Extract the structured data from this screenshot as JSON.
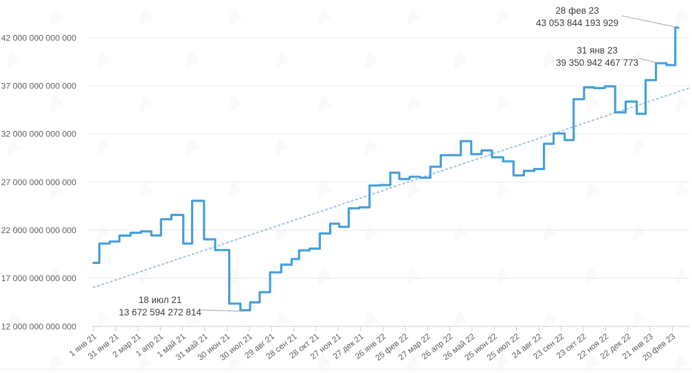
{
  "page": {
    "background": "#ffffff",
    "watermark": {
      "icon": "logo-watermark",
      "color": "#8f86ad",
      "opacity": 0.05
    }
  },
  "chart_data": {
    "type": "line",
    "subtype": "step",
    "title": "",
    "ylabel": "",
    "xlabel": "",
    "grid": "horizontal",
    "ylim_trillions": [
      12,
      42
    ],
    "y_tick_labels": [
      "12 000 000 000 000",
      "17 000 000 000 000",
      "22 000 000 000 000",
      "27 000 000 000 000",
      "32 000 000 000 000",
      "37 000 000 000 000",
      "42 000 000 000 000"
    ],
    "y_tick_values_trillions": [
      12,
      17,
      22,
      27,
      32,
      37,
      42
    ],
    "x_tick_labels": [
      "1 янв 21",
      "31 янв 21",
      "2 мар 21",
      "1 апр 21",
      "1 май 21",
      "31 май 21",
      "30 июн 21",
      "30 июл 21",
      "29 авг 21",
      "28 сен 21",
      "28 окт 21",
      "27 ноя 21",
      "27 дек 21",
      "26 янв 22",
      "25 фев 22",
      "27 мар 22",
      "26 апр 22",
      "26 май 22",
      "25 июн 22",
      "25 июл 22",
      "24 авг 22",
      "23 сен 22",
      "23 окт 22",
      "22 ноя 22",
      "22 дек 22",
      "21 янв 23",
      "20 фев 23"
    ],
    "x_tick_interval_days": 30,
    "series": [
      {
        "name": "mining-difficulty",
        "color": "#459fd8",
        "points_day_valueT": [
          [
            0,
            18.599
          ],
          [
            8,
            20.607
          ],
          [
            22,
            20.823
          ],
          [
            35,
            21.434
          ],
          [
            50,
            21.724
          ],
          [
            64,
            21.866
          ],
          [
            78,
            21.448
          ],
          [
            91,
            23.137
          ],
          [
            105,
            23.581
          ],
          [
            121,
            20.608
          ],
          [
            133,
            25.046
          ],
          [
            149,
            21.048
          ],
          [
            164,
            19.933
          ],
          [
            183,
            14.363
          ],
          [
            198,
            13.673
          ],
          [
            211,
            14.496
          ],
          [
            224,
            15.556
          ],
          [
            238,
            17.615
          ],
          [
            253,
            18.415
          ],
          [
            267,
            18.998
          ],
          [
            277,
            19.893
          ],
          [
            291,
            20.082
          ],
          [
            305,
            21.659
          ],
          [
            319,
            22.674
          ],
          [
            331,
            22.339
          ],
          [
            344,
            24.272
          ],
          [
            358,
            24.372
          ],
          [
            372,
            26.643
          ],
          [
            386,
            26.69
          ],
          [
            400,
            27.968
          ],
          [
            412,
            27.313
          ],
          [
            426,
            27.551
          ],
          [
            440,
            27.452
          ],
          [
            454,
            28.587
          ],
          [
            468,
            29.794
          ],
          [
            481,
            29.794
          ],
          [
            495,
            31.251
          ],
          [
            509,
            29.897
          ],
          [
            523,
            30.283
          ],
          [
            537,
            29.57
          ],
          [
            552,
            29.153
          ],
          [
            566,
            27.693
          ],
          [
            580,
            28.172
          ],
          [
            594,
            28.351
          ],
          [
            607,
            30.977
          ],
          [
            620,
            32.045
          ],
          [
            635,
            31.36
          ],
          [
            647,
            35.61
          ],
          [
            661,
            36.839
          ],
          [
            675,
            36.761
          ],
          [
            689,
            36.95
          ],
          [
            703,
            34.24
          ],
          [
            717,
            35.363
          ],
          [
            732,
            34.093
          ],
          [
            744,
            37.591
          ],
          [
            758,
            39.351
          ],
          [
            772,
            39.156
          ],
          [
            784,
            43.054
          ],
          [
            788,
            43.054
          ]
        ]
      }
    ],
    "trend": {
      "style": "dotted",
      "color": "#a6c7e7",
      "start_day": 0,
      "start_valueT": 16.05,
      "end_day": 802,
      "end_valueT": 36.75
    },
    "annotations": [
      {
        "date": "28 фев 23",
        "value": "43 053 844 193 929",
        "target_day": 784,
        "target_valueT": 43.054
      },
      {
        "date": "31 янв 23",
        "value": "39 350 942 467 773",
        "target_day": 758,
        "target_valueT": 39.351
      },
      {
        "date": "18 июл 21",
        "value": "13 672 594 272 814",
        "target_day": 202,
        "target_valueT": 13.673
      }
    ],
    "colors": {
      "grid": "#e9eaec",
      "axis": "#c9ccd1",
      "tick_text": "#5b5e62",
      "annotation_text": "#3a3d41",
      "leader_line": "#a9a9a9"
    }
  }
}
